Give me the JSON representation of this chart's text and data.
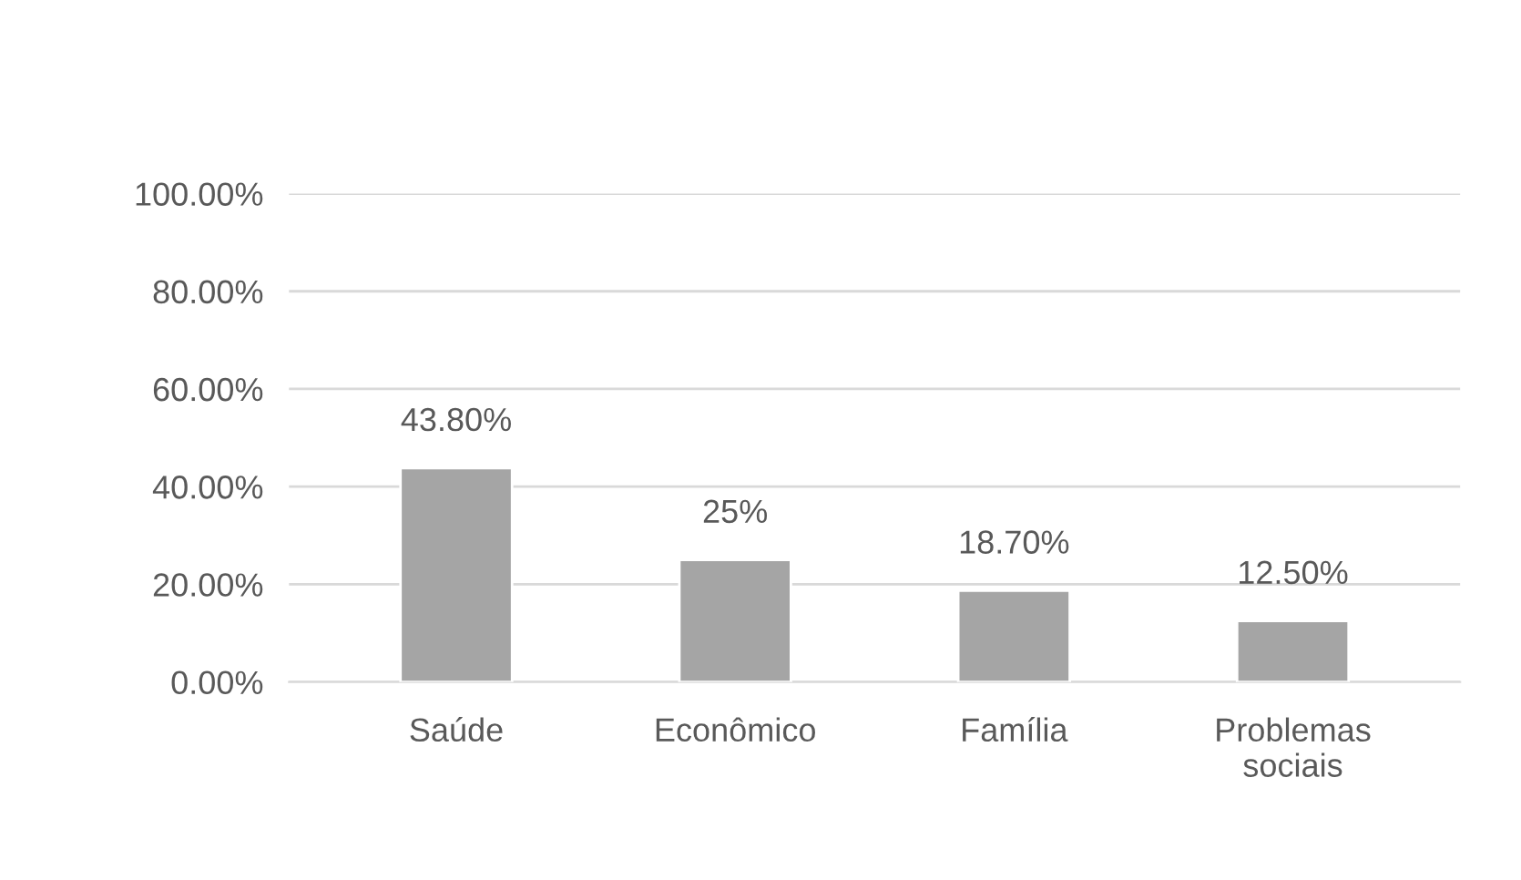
{
  "chart_data": {
    "type": "bar",
    "categories": [
      "Saúde",
      "Econômico",
      "Família",
      "Problemas sociais"
    ],
    "values": [
      43.8,
      25,
      18.7,
      12.5
    ],
    "value_labels": [
      "43.80%",
      "25%",
      "18.70%",
      "12.50%"
    ],
    "color": "#a5a5a5",
    "ylim": [
      0,
      100
    ],
    "yticks": [
      {
        "value": 0,
        "label": "0.00%"
      },
      {
        "value": 20,
        "label": "20.00%"
      },
      {
        "value": 40,
        "label": "40.00%"
      },
      {
        "value": 60,
        "label": "60.00%"
      },
      {
        "value": 80,
        "label": "80.00%"
      },
      {
        "value": 100,
        "label": "100.00%"
      }
    ],
    "grid": "y"
  }
}
